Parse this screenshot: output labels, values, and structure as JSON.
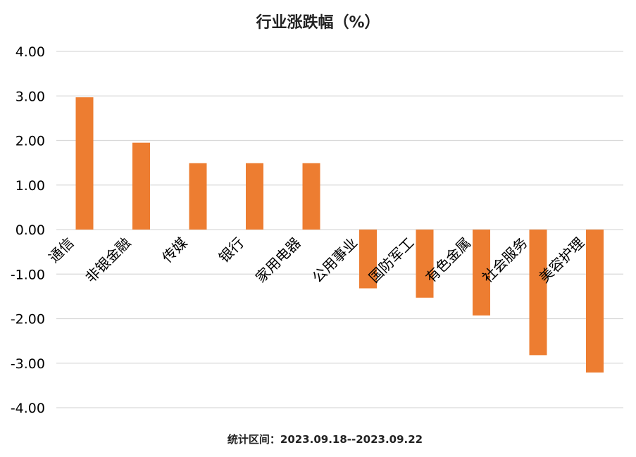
{
  "chart_data": {
    "type": "bar",
    "title": "行业涨跌幅（%）",
    "categories": [
      "通信",
      "非银金融",
      "传媒",
      "银行",
      "家用电器",
      "公用事业",
      "国防军工",
      "有色金属",
      "社会服务",
      "美容护理"
    ],
    "values": [
      2.97,
      1.95,
      1.49,
      1.49,
      1.49,
      -1.32,
      -1.53,
      -1.93,
      -2.82,
      -3.21
    ],
    "ylim": [
      -4,
      4
    ],
    "yticks": [
      4,
      3,
      2,
      1,
      0,
      -1,
      -2,
      -3,
      -4
    ],
    "ytick_labels": [
      "4.00",
      "3.00",
      "2.00",
      "1.00",
      "0.00",
      "-1.00",
      "-2.00",
      "-3.00",
      "-4.00"
    ],
    "xlabel": "",
    "ylabel": "",
    "grid": true,
    "legend": "none",
    "bar_color": "#ED7D31",
    "grid_color": "#D9D9D9",
    "footer": "统计区间：2023.09.18--2023.09.22"
  }
}
